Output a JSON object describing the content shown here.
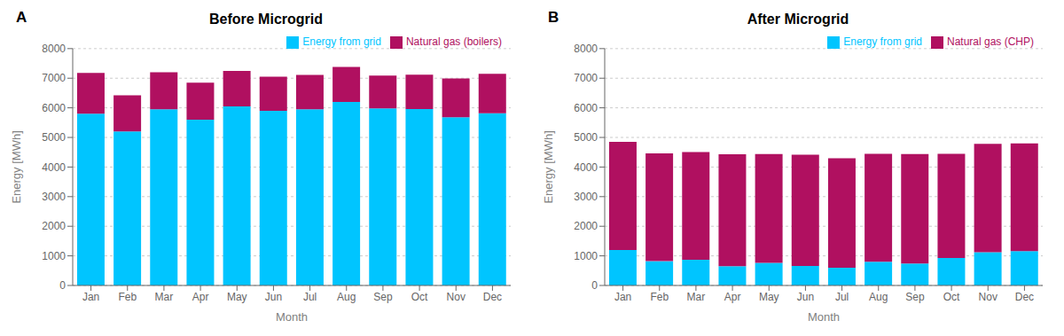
{
  "chart_data": [
    {
      "type": "bar",
      "stacked": true,
      "title": "Before Microgrid",
      "annotations": [
        "A"
      ],
      "x_label": "Month",
      "y_label": "Energy [MWh]",
      "categories": [
        "Jan",
        "Feb",
        "Mar",
        "Apr",
        "May",
        "Jun",
        "Jul",
        "Aug",
        "Sep",
        "Oct",
        "Nov",
        "Dec"
      ],
      "series": [
        {
          "name": "Energy from grid",
          "color": "#00C5FF",
          "values": [
            5800,
            5200,
            5950,
            5600,
            6050,
            5900,
            5950,
            6200,
            5980,
            5960,
            5680,
            5820
          ]
        },
        {
          "name": "Natural gas (boilers)",
          "color": "#B01060",
          "values": [
            1380,
            1220,
            1250,
            1250,
            1200,
            1150,
            1160,
            1180,
            1110,
            1160,
            1310,
            1330
          ]
        }
      ],
      "ylim": [
        0,
        8000
      ],
      "yticks": [
        0,
        1000,
        2000,
        3000,
        4000,
        5000,
        6000,
        7000,
        8000
      ],
      "grid": true,
      "legend": "upper right"
    },
    {
      "type": "bar",
      "stacked": true,
      "title": "After Microgrid",
      "annotations": [
        "B"
      ],
      "x_label": "Month",
      "y_label": "Energy [MWh]",
      "categories": [
        "Jan",
        "Feb",
        "Mar",
        "Apr",
        "May",
        "Jun",
        "Jul",
        "Aug",
        "Sep",
        "Oct",
        "Nov",
        "Dec"
      ],
      "series": [
        {
          "name": "Energy from grid",
          "color": "#00C5FF",
          "values": [
            1200,
            820,
            870,
            650,
            760,
            660,
            600,
            800,
            740,
            930,
            1120,
            1160
          ]
        },
        {
          "name": "Natural gas (CHP)",
          "color": "#B01060",
          "values": [
            3650,
            3640,
            3640,
            3780,
            3680,
            3760,
            3700,
            3650,
            3700,
            3520,
            3660,
            3640
          ]
        }
      ],
      "ylim": [
        0,
        8000
      ],
      "yticks": [
        0,
        1000,
        2000,
        3000,
        4000,
        5000,
        6000,
        7000,
        8000
      ],
      "grid": true,
      "legend": "upper right"
    }
  ]
}
